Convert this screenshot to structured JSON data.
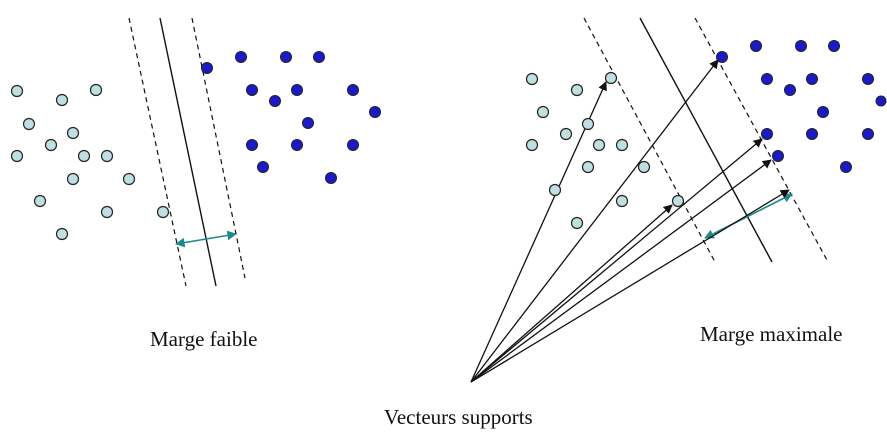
{
  "left_panel": {
    "caption": "Marge faible"
  },
  "right_panel": {
    "caption": "Marge maximale"
  },
  "bottom_caption": "Vecteurs supports",
  "colors": {
    "light_point_fill": "#bfe0e0",
    "dark_point_fill": "#1a1acc",
    "point_stroke": "#222222",
    "margin_arrow": "#1f8a8a",
    "line": "#111111"
  }
}
